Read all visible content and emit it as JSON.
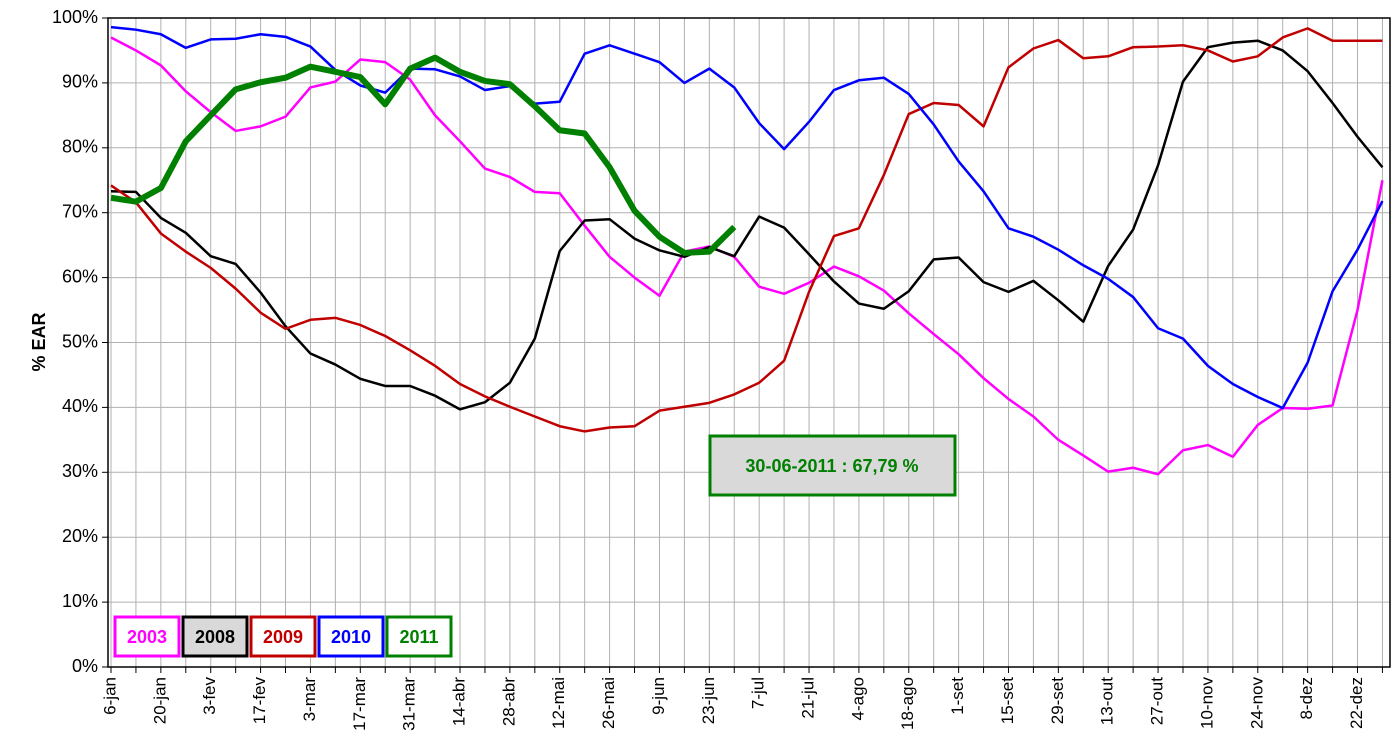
{
  "chart_data": {
    "type": "line",
    "y_label": "% EAR",
    "annotation": "30-06-2011 : 67,79 %",
    "categories": [
      "6-jan",
      null,
      "20-jan",
      null,
      "3-fev",
      null,
      "17-fev",
      null,
      "3-mar",
      null,
      "17-mar",
      null,
      "31-mar",
      null,
      "14-abr",
      null,
      "28-abr",
      null,
      "12-mai",
      null,
      "26-mai",
      null,
      "9-jun",
      null,
      "23-jun",
      null,
      "7-jul",
      null,
      "21-jul",
      null,
      "4-ago",
      null,
      "18-ago",
      null,
      "1-set",
      null,
      "15-set",
      null,
      "29-set",
      null,
      "13-out",
      null,
      "27-out",
      null,
      "10-nov",
      null,
      "24-nov",
      null,
      "8-dez",
      null,
      "22-dez",
      null
    ],
    "series": [
      {
        "name": "2003",
        "color": "#ff00ff",
        "values": [
          97,
          95,
          92.7,
          88.7,
          85.5,
          82.6,
          83.3,
          84.8,
          89.3,
          90.2,
          93.6,
          93.2,
          90.5,
          85,
          81,
          76.8,
          75.5,
          73.2,
          73,
          68,
          63.2,
          60,
          57.2,
          64,
          64.8,
          63.2,
          58.6,
          57.5,
          59.2,
          61.7,
          60.2,
          58,
          54.5,
          51.3,
          48.2,
          44.5,
          41.3,
          38.6,
          35,
          32.6,
          30.1,
          30.7,
          29.7,
          33.4,
          34.2,
          32.4,
          37.3,
          39.9,
          39.8,
          40.3,
          55,
          75
        ]
      },
      {
        "name": "2008",
        "color": "#000000",
        "values": [
          73.3,
          73.2,
          69.2,
          66.9,
          63.3,
          62.1,
          57.7,
          52.5,
          48.3,
          46.6,
          44.4,
          43.3,
          43.3,
          41.8,
          39.7,
          40.8,
          43.8,
          50.6,
          64.1,
          68.8,
          69,
          66,
          64.2,
          63.2,
          64.7,
          63.3,
          69.4,
          67.7,
          63.6,
          59.4,
          56,
          55.2,
          57.9,
          62.8,
          63.1,
          59.3,
          57.8,
          59.5,
          56.5,
          53.2,
          61.8,
          67.4,
          77.3,
          90.2,
          95.5,
          96.2,
          96.5,
          95,
          91.8,
          86.9,
          81.7,
          77
        ]
      },
      {
        "name": "2009",
        "color": "#c00000",
        "values": [
          74.2,
          71.6,
          66.8,
          64,
          61.5,
          58.3,
          54.6,
          52.1,
          53.5,
          53.8,
          52.7,
          51,
          48.8,
          46.4,
          43.6,
          41.7,
          40.1,
          38.6,
          37.1,
          36.3,
          36.9,
          37.1,
          39.5,
          40.1,
          40.7,
          42,
          43.8,
          47.2,
          57.8,
          66.4,
          67.6,
          75.8,
          85.2,
          86.9,
          86.6,
          83.3,
          92.4,
          95.3,
          96.6,
          93.8,
          94.1,
          95.5,
          95.6,
          95.8,
          95,
          93.3,
          94.1,
          97,
          98.4,
          96.5,
          96.5,
          96.5
        ]
      },
      {
        "name": "2010",
        "color": "#0000ff",
        "values": [
          98.6,
          98.2,
          97.5,
          95.4,
          96.7,
          96.8,
          97.5,
          97.1,
          95.6,
          92,
          89.6,
          88.5,
          92.2,
          92.1,
          91,
          88.9,
          89.5,
          86.8,
          87.1,
          94.5,
          95.8,
          94.5,
          93.2,
          90,
          92.2,
          89.3,
          83.8,
          79.8,
          84,
          88.9,
          90.4,
          90.8,
          88.3,
          83.6,
          77.9,
          73.3,
          67.6,
          66.3,
          64.3,
          61.9,
          59.8,
          57,
          52.2,
          50.6,
          46.4,
          43.6,
          41.6,
          39.9,
          46.9,
          57.9,
          64.3,
          71.8
        ]
      },
      {
        "name": "2011",
        "color": "#008000",
        "values": [
          72.3,
          71.7,
          73.8,
          81,
          85,
          89,
          90.1,
          90.8,
          92.5,
          91.7,
          90.9,
          86.7,
          92.2,
          93.9,
          91.7,
          90.3,
          89.8,
          86.4,
          82.7,
          82.2,
          77,
          70.3,
          66.3,
          63.8,
          64,
          67.79,
          null,
          null,
          null,
          null,
          null,
          null,
          null,
          null,
          null,
          null,
          null,
          null,
          null,
          null,
          null,
          null,
          null,
          null,
          null,
          null,
          null,
          null,
          null,
          null,
          null,
          null
        ]
      }
    ],
    "ylim": [
      0,
      100
    ],
    "yticks": [
      {
        "value": 0,
        "label": "0%"
      },
      {
        "value": 10,
        "label": "10%"
      },
      {
        "value": 20,
        "label": "20%"
      },
      {
        "value": 30,
        "label": "30%"
      },
      {
        "value": 40,
        "label": "40%"
      },
      {
        "value": 50,
        "label": "50%"
      },
      {
        "value": 60,
        "label": "60%"
      },
      {
        "value": 70,
        "label": "70%"
      },
      {
        "value": 80,
        "label": "80%"
      },
      {
        "value": 90,
        "label": "90%"
      },
      {
        "value": 100,
        "label": "100%"
      }
    ],
    "grid": true
  }
}
